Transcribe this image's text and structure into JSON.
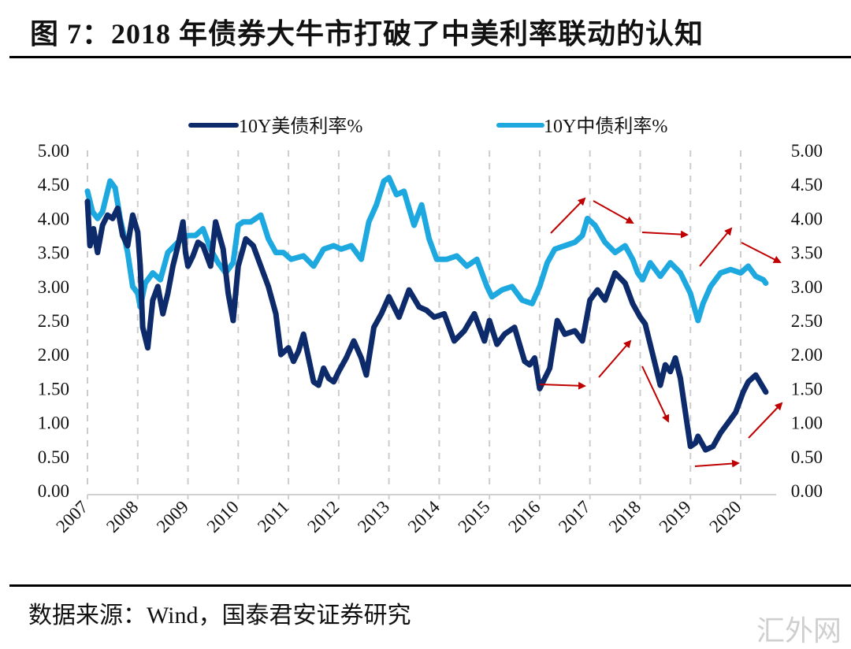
{
  "header": {
    "title": "图 7：2018 年债券大牛市打破了中美利率联动的认知"
  },
  "footer": {
    "source": "数据来源：Wind，国泰君安证券研究",
    "watermark": "汇外网"
  },
  "chart_data": {
    "type": "line",
    "title": "图 7：2018 年债券大牛市打破了中美利率联动的认知",
    "xlabel": "",
    "ylabel": "",
    "ylim": [
      0,
      5
    ],
    "y_ticks": [
      "0.00",
      "0.50",
      "1.00",
      "1.50",
      "2.00",
      "2.50",
      "3.00",
      "3.50",
      "4.00",
      "4.50",
      "5.00"
    ],
    "y_ticks_right": [
      "0.00",
      "0.50",
      "1.00",
      "1.50",
      "2.00",
      "2.50",
      "3.00",
      "3.50",
      "4.00",
      "4.50",
      "5.00"
    ],
    "x_ticks": [
      "2007",
      "2008",
      "2009",
      "2010",
      "2011",
      "2012",
      "2013",
      "2014",
      "2015",
      "2016",
      "2017",
      "2018",
      "2019",
      "2020"
    ],
    "xlim": [
      2007.0,
      2020.55
    ],
    "grid": "vertical dashed at each year",
    "legend_position": "top",
    "series": [
      {
        "name": "10Y美债利率%",
        "color": "#0d2a6b",
        "x": [
          2007.0,
          2007.05,
          2007.12,
          2007.2,
          2007.3,
          2007.4,
          2007.5,
          2007.6,
          2007.7,
          2007.8,
          2007.9,
          2008.0,
          2008.05,
          2008.1,
          2008.2,
          2008.3,
          2008.4,
          2008.5,
          2008.6,
          2008.7,
          2008.8,
          2008.9,
          2008.95,
          2009.0,
          2009.1,
          2009.2,
          2009.3,
          2009.45,
          2009.55,
          2009.7,
          2009.8,
          2009.9,
          2010.0,
          2010.15,
          2010.3,
          2010.45,
          2010.6,
          2010.75,
          2010.85,
          2011.0,
          2011.1,
          2011.2,
          2011.3,
          2011.5,
          2011.6,
          2011.7,
          2011.8,
          2011.9,
          2012.0,
          2012.15,
          2012.3,
          2012.45,
          2012.55,
          2012.7,
          2012.85,
          2013.0,
          2013.2,
          2013.4,
          2013.6,
          2013.75,
          2013.9,
          2014.1,
          2014.3,
          2014.5,
          2014.7,
          2014.9,
          2015.0,
          2015.15,
          2015.3,
          2015.5,
          2015.7,
          2015.8,
          2015.9,
          2016.0,
          2016.2,
          2016.35,
          2016.5,
          2016.7,
          2016.85,
          2017.0,
          2017.15,
          2017.3,
          2017.5,
          2017.7,
          2017.85,
          2018.0,
          2018.1,
          2018.25,
          2018.4,
          2018.5,
          2018.6,
          2018.7,
          2018.8,
          2019.0,
          2019.1,
          2019.15,
          2019.3,
          2019.45,
          2019.6,
          2019.75,
          2019.9,
          2020.05,
          2020.15,
          2020.3,
          2020.42,
          2020.5
        ],
        "y": [
          4.25,
          3.6,
          3.85,
          3.5,
          3.9,
          4.05,
          4.0,
          4.15,
          3.75,
          3.6,
          4.05,
          3.8,
          3.3,
          2.4,
          2.1,
          2.8,
          3.0,
          2.6,
          2.9,
          3.3,
          3.6,
          3.95,
          3.5,
          3.3,
          3.45,
          3.65,
          3.6,
          3.3,
          3.95,
          3.55,
          2.9,
          2.5,
          3.3,
          3.7,
          3.6,
          3.3,
          3.0,
          2.6,
          2.0,
          2.1,
          1.9,
          2.05,
          2.3,
          1.6,
          1.55,
          1.8,
          1.65,
          1.6,
          1.75,
          1.95,
          2.2,
          1.95,
          1.7,
          2.4,
          2.6,
          2.85,
          2.55,
          2.95,
          2.7,
          2.65,
          2.55,
          2.6,
          2.2,
          2.35,
          2.6,
          2.2,
          2.5,
          2.15,
          2.3,
          2.4,
          1.9,
          1.85,
          1.95,
          1.5,
          1.8,
          2.5,
          2.3,
          2.35,
          2.2,
          2.8,
          2.95,
          2.8,
          3.2,
          3.05,
          2.75,
          2.55,
          2.45,
          2.0,
          1.55,
          1.85,
          1.75,
          1.95,
          1.65,
          0.65,
          0.7,
          0.8,
          0.6,
          0.65,
          0.85,
          1.0,
          1.15,
          1.45,
          1.6,
          1.7,
          1.55,
          1.45
        ]
      },
      {
        "name": "10Y中债利率%",
        "color": "#1ea8e0",
        "x": [
          2007.0,
          2007.1,
          2007.2,
          2007.3,
          2007.45,
          2007.55,
          2007.65,
          2007.8,
          2007.9,
          2008.0,
          2008.05,
          2008.15,
          2008.3,
          2008.45,
          2008.6,
          2008.8,
          2009.0,
          2009.15,
          2009.3,
          2009.45,
          2009.6,
          2009.75,
          2009.9,
          2010.0,
          2010.1,
          2010.25,
          2010.45,
          2010.6,
          2010.75,
          2010.9,
          2011.05,
          2011.3,
          2011.5,
          2011.7,
          2011.9,
          2012.05,
          2012.25,
          2012.45,
          2012.6,
          2012.75,
          2012.9,
          2013.0,
          2013.15,
          2013.3,
          2013.5,
          2013.65,
          2013.8,
          2013.95,
          2014.15,
          2014.35,
          2014.55,
          2014.75,
          2014.95,
          2015.05,
          2015.25,
          2015.45,
          2015.65,
          2015.85,
          2016.0,
          2016.15,
          2016.3,
          2016.5,
          2016.7,
          2016.85,
          2016.95,
          2017.1,
          2017.3,
          2017.5,
          2017.7,
          2017.85,
          2017.95,
          2018.05,
          2018.2,
          2018.4,
          2018.6,
          2018.8,
          2019.0,
          2019.15,
          2019.25,
          2019.4,
          2019.6,
          2019.8,
          2020.0,
          2020.15,
          2020.3,
          2020.45,
          2020.5
        ],
        "y": [
          4.4,
          4.1,
          4.0,
          4.1,
          4.55,
          4.45,
          4.0,
          3.5,
          3.0,
          2.9,
          2.7,
          3.05,
          3.2,
          3.1,
          3.5,
          3.65,
          3.75,
          3.75,
          3.85,
          3.55,
          3.35,
          3.2,
          3.35,
          3.9,
          3.95,
          3.95,
          4.05,
          3.7,
          3.5,
          3.5,
          3.4,
          3.45,
          3.3,
          3.55,
          3.6,
          3.55,
          3.6,
          3.4,
          3.95,
          4.2,
          4.55,
          4.6,
          4.35,
          4.4,
          3.9,
          4.2,
          3.7,
          3.4,
          3.4,
          3.45,
          3.3,
          3.4,
          3.0,
          2.85,
          2.95,
          3.0,
          2.8,
          2.75,
          3.0,
          3.35,
          3.55,
          3.6,
          3.65,
          3.75,
          4.0,
          3.9,
          3.65,
          3.5,
          3.6,
          3.4,
          3.2,
          3.1,
          3.35,
          3.15,
          3.35,
          3.2,
          2.9,
          2.5,
          2.75,
          3.0,
          3.2,
          3.25,
          3.2,
          3.3,
          3.15,
          3.1,
          3.05
        ]
      }
    ],
    "annotations": [
      {
        "type": "arrow",
        "color": "#c00000",
        "target_series": "10Y中债利率%",
        "direction": "up",
        "from_year": 2016.2,
        "to_year": 2016.85
      },
      {
        "type": "arrow",
        "color": "#c00000",
        "target_series": "10Y中债利率%",
        "direction": "down",
        "from_year": 2017.0,
        "to_year": 2017.75
      },
      {
        "type": "arrow",
        "color": "#c00000",
        "target_series": "10Y中债利率%",
        "direction": "flat",
        "from_year": 2018.0,
        "to_year": 2018.9
      },
      {
        "type": "arrow",
        "color": "#c00000",
        "target_series": "10Y中债利率%",
        "direction": "up",
        "from_year": 2019.1,
        "to_year": 2019.75
      },
      {
        "type": "arrow",
        "color": "#c00000",
        "target_series": "10Y中债利率%",
        "direction": "down",
        "from_year": 2019.95,
        "to_year": 2020.75
      },
      {
        "type": "arrow",
        "color": "#c00000",
        "target_series": "10Y美债利率%",
        "direction": "flat",
        "from_year": 2016.0,
        "to_year": 2016.85
      },
      {
        "type": "arrow",
        "color": "#c00000",
        "target_series": "10Y美债利率%",
        "direction": "up",
        "from_year": 2017.2,
        "to_year": 2017.9
      },
      {
        "type": "arrow",
        "color": "#c00000",
        "target_series": "10Y美债利率%",
        "direction": "down",
        "from_year": 2018.0,
        "to_year": 2018.55
      },
      {
        "type": "arrow",
        "color": "#c00000",
        "target_series": "10Y美债利率%",
        "direction": "flat",
        "from_year": 2019.05,
        "to_year": 2019.95
      },
      {
        "type": "arrow",
        "color": "#c00000",
        "target_series": "10Y美债利率%",
        "direction": "up",
        "from_year": 2020.15,
        "to_year": 2020.8
      }
    ]
  }
}
